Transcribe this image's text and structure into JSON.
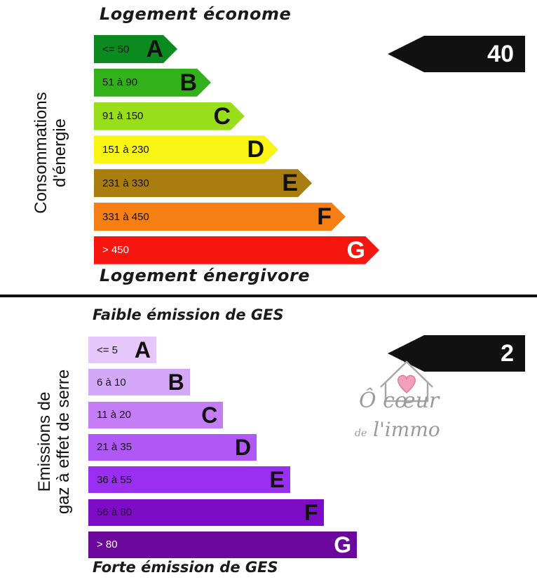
{
  "chart_data": [
    {
      "type": "bar",
      "top_label": "Logement économe",
      "bottom_label": "Logement énergivore",
      "axis_label": [
        "Consommations",
        "d'énergie"
      ],
      "categories": [
        "A",
        "B",
        "C",
        "D",
        "E",
        "F",
        "G"
      ],
      "ranges": [
        "<= 50",
        "51 à 90",
        "91 à 150",
        "151 à 230",
        "231 à 330",
        "331 à 450",
        "> 450"
      ],
      "colors": [
        "#0a8a1f",
        "#33b11b",
        "#99de1a",
        "#f7f416",
        "#aa7d10",
        "#f57f13",
        "#f5170f"
      ],
      "value": "40"
    },
    {
      "type": "bar",
      "top_label": "Faible émission de GES",
      "bottom_label": "Forte émission de GES",
      "axis_label": [
        "Emissions de",
        "gaz à effet de serre"
      ],
      "categories": [
        "A",
        "B",
        "C",
        "D",
        "E",
        "F",
        "G"
      ],
      "ranges": [
        "<= 5",
        "6 à 10",
        "11 à 20",
        "21 à 35",
        "36 à 55",
        "56 à 80",
        "> 80"
      ],
      "colors": [
        "#e6c7fb",
        "#d5a7f8",
        "#c47df7",
        "#b058f5",
        "#9a2ff2",
        "#7e0cc7",
        "#6c079e"
      ],
      "value": "2"
    }
  ],
  "watermark": {
    "line1": "Ô cœur",
    "line2_small": "de",
    "line2": "l'immo",
    "icon": "house-heart-icon"
  }
}
